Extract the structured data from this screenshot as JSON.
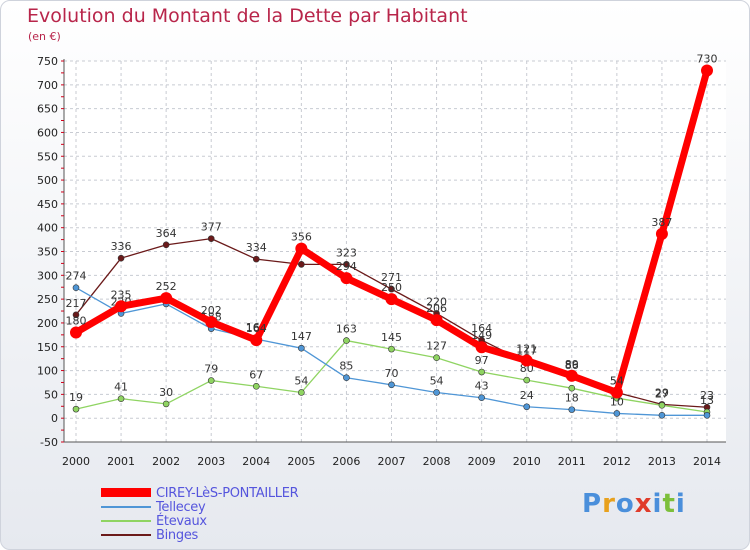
{
  "title": "Evolution du Montant de la Dette par Habitant",
  "subtitle": "(en €)",
  "chart_data": {
    "type": "line",
    "x": [
      "2000",
      "2001",
      "2002",
      "2003",
      "2004",
      "2005",
      "2006",
      "2007",
      "2008",
      "2009",
      "2010",
      "2011",
      "2012",
      "2013",
      "2014"
    ],
    "ylim": [
      -50,
      750
    ],
    "yticks": [
      -50,
      0,
      50,
      100,
      150,
      200,
      250,
      300,
      350,
      400,
      450,
      500,
      550,
      600,
      650,
      700,
      750
    ],
    "grid": true,
    "legend_position": "bottom-left",
    "series": [
      {
        "name": "Binges",
        "color": "#6b1a1a",
        "line_width": 1.3,
        "values": [
          217,
          336,
          364,
          377,
          334,
          323,
          323,
          271,
          220,
          164,
          117,
          86,
          54,
          29,
          23
        ],
        "labels": [
          "217",
          "336",
          "364",
          "377",
          "334",
          "",
          "323",
          "271",
          "220",
          "164",
          "117",
          "86",
          "54",
          "29",
          "23"
        ]
      },
      {
        "name": "Étevaux",
        "color": "#8fd462",
        "line_width": 1.3,
        "values": [
          19,
          41,
          30,
          79,
          67,
          54,
          163,
          145,
          127,
          97,
          80,
          63,
          42,
          27,
          13
        ],
        "labels": [
          "19",
          "41",
          "30",
          "79",
          "67",
          "54",
          "163",
          "145",
          "127",
          "97",
          "80",
          "",
          "",
          "27",
          "13"
        ]
      },
      {
        "name": "Tellecey",
        "color": "#4f96d6",
        "line_width": 1.3,
        "values": [
          274,
          220,
          240,
          188,
          166,
          147,
          85,
          70,
          54,
          43,
          24,
          18,
          10,
          6,
          6
        ],
        "labels": [
          "274",
          "220",
          "",
          "188",
          "166",
          "147",
          "85",
          "70",
          "54",
          "43",
          "24",
          "18",
          "10",
          "",
          ""
        ]
      },
      {
        "name": "CIREY-LèS-PONTAILLER",
        "color": "#ff0000",
        "line_width": 7,
        "values": [
          180,
          235,
          252,
          202,
          164,
          356,
          294,
          250,
          206,
          149,
          121,
          89,
          54,
          387,
          730
        ],
        "labels": [
          "180",
          "235",
          "252",
          "202",
          "164",
          "356",
          "294",
          "250",
          "206",
          "149",
          "121",
          "89",
          "54",
          "387",
          "730"
        ]
      }
    ],
    "legend": [
      {
        "name": "CIREY-LèS-PONTAILLER",
        "color": "#ff0000"
      },
      {
        "name": "Tellecey",
        "color": "#4f96d6"
      },
      {
        "name": "Étevaux",
        "color": "#8fd462"
      },
      {
        "name": "Binges",
        "color": "#6b1a1a"
      }
    ]
  },
  "logo": {
    "letters": [
      "P",
      "r",
      "o",
      "x",
      "i",
      "t",
      "i"
    ],
    "colors": [
      "#4a8fdb",
      "#e8a11d",
      "#4a8fdb",
      "#e03b2a",
      "#4a8fdb",
      "#7cbf3a",
      "#4a8fdb"
    ]
  }
}
